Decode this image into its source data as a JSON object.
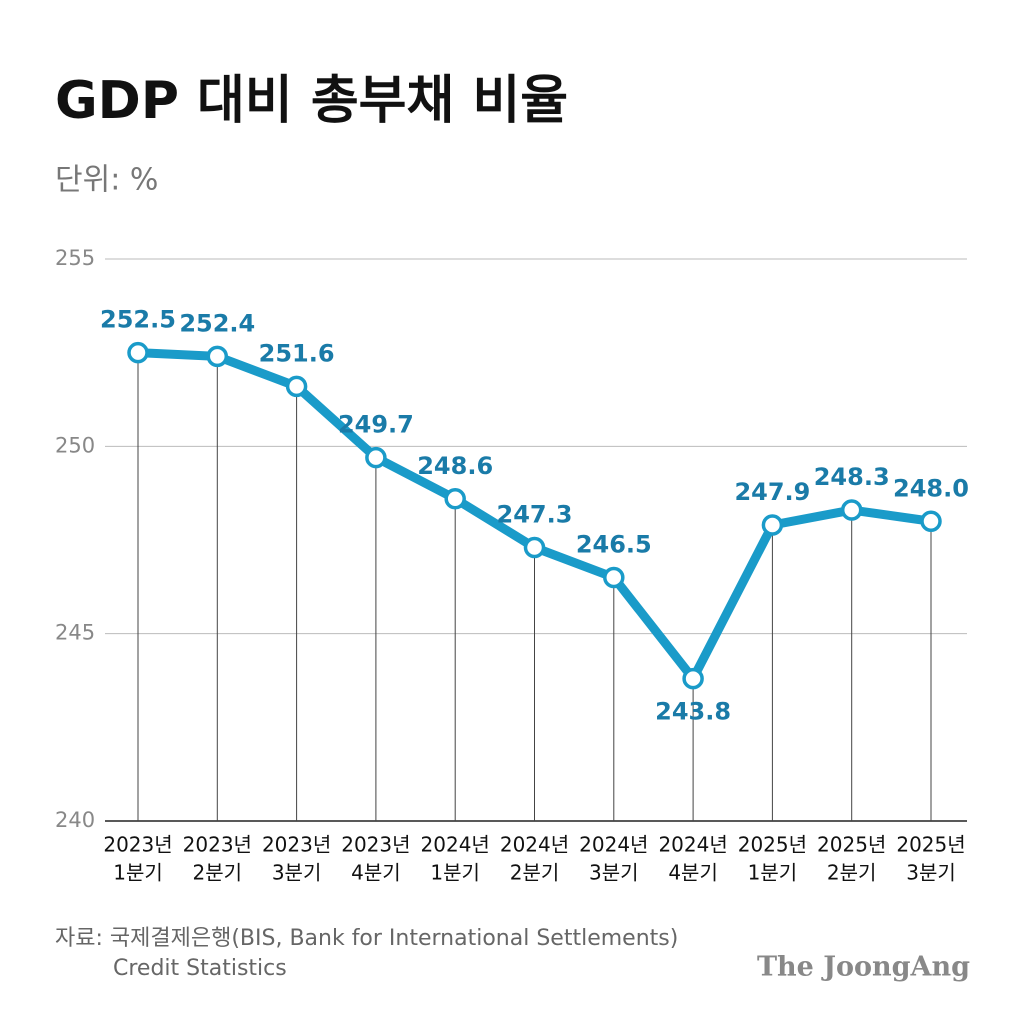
{
  "chart_data": {
    "type": "line",
    "title": "GDP 대비 총부채 비율",
    "subtitle": "단위: %",
    "categories": [
      [
        "2023년",
        "1분기"
      ],
      [
        "2023년",
        "2분기"
      ],
      [
        "2023년",
        "3분기"
      ],
      [
        "2023년",
        "4분기"
      ],
      [
        "2024년",
        "1분기"
      ],
      [
        "2024년",
        "2분기"
      ],
      [
        "2024년",
        "3분기"
      ],
      [
        "2024년",
        "4분기"
      ],
      [
        "2025년",
        "1분기"
      ],
      [
        "2025년",
        "2분기"
      ],
      [
        "2025년",
        "3분기"
      ]
    ],
    "values": [
      252.5,
      252.4,
      251.6,
      249.7,
      248.6,
      247.3,
      246.5,
      243.8,
      247.9,
      248.3,
      248.0
    ],
    "value_labels": [
      "252.5",
      "252.4",
      "251.6",
      "249.7",
      "248.6",
      "247.3",
      "246.5",
      "243.8",
      "247.9",
      "248.3",
      "248.0"
    ],
    "color": "#1a9bc9",
    "ylim": [
      240,
      255
    ],
    "yticks": [
      240,
      245,
      250,
      255
    ],
    "grid": true,
    "source": [
      "자료: 국제결제은행(BIS, Bank for International Settlements)",
      "Credit Statistics"
    ],
    "logo": "The JoongAng"
  }
}
